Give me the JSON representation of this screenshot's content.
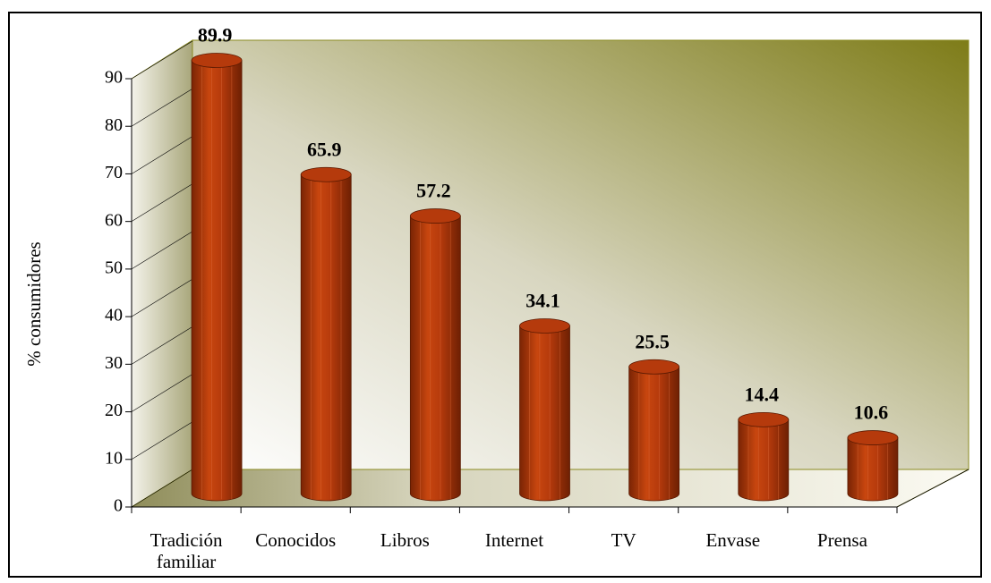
{
  "chart_data": {
    "type": "bar",
    "y_label": "% consumidores",
    "categories": [
      "Tradición familiar",
      "Conocidos",
      "Libros",
      "Internet",
      "TV",
      "Envase",
      "Prensa"
    ],
    "values": [
      89.9,
      65.9,
      57.2,
      34.1,
      25.5,
      14.4,
      10.6
    ],
    "color": "#b53a0c",
    "ylim": [
      0,
      90
    ],
    "yticks": [
      0,
      10,
      20,
      30,
      40,
      50,
      60,
      70,
      80,
      90
    ]
  }
}
